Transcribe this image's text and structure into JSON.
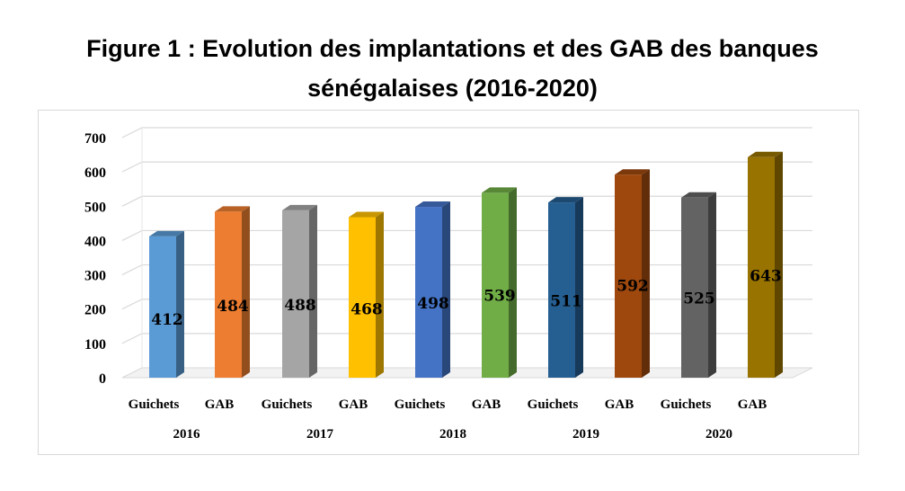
{
  "title_line1": "Figure 1 : Evolution des implantations et des GAB des banques",
  "title_line2": "sénégalaises (2016-2020)",
  "chart_data": {
    "type": "bar",
    "title": "Figure 1 : Evolution des implantations et des GAB des banques sénégalaises (2016-2020)",
    "xlabel": "",
    "ylabel": "",
    "ylim": [
      0,
      700
    ],
    "yticks": [
      0,
      100,
      200,
      300,
      400,
      500,
      600,
      700
    ],
    "grid": true,
    "groups": [
      "2016",
      "2017",
      "2018",
      "2019",
      "2020"
    ],
    "categories": [
      "Guichets",
      "GAB",
      "Guichets",
      "GAB",
      "Guichets",
      "GAB",
      "Guichets",
      "GAB",
      "Guichets",
      "GAB"
    ],
    "values": [
      412,
      484,
      488,
      468,
      498,
      539,
      511,
      592,
      525,
      643
    ],
    "colors": [
      "#5B9BD5",
      "#ED7D31",
      "#A5A5A5",
      "#FFC000",
      "#4472C4",
      "#70AD47",
      "#255E91",
      "#9E480E",
      "#636363",
      "#997300"
    ]
  }
}
